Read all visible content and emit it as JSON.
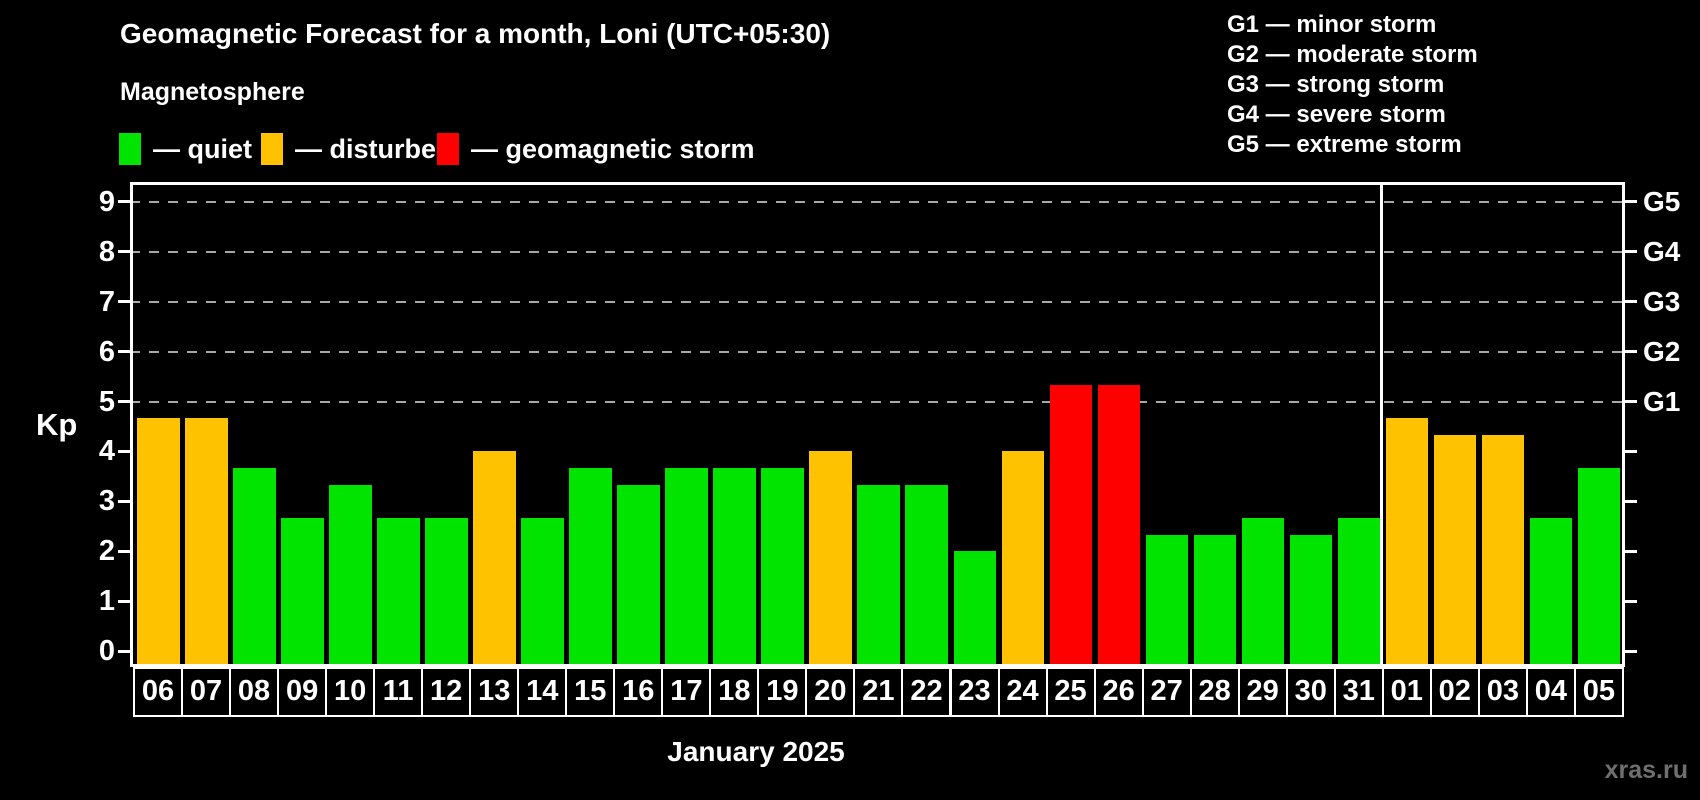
{
  "header": {
    "title": "Geomagnetic Forecast for a month, Loni (UTC+05:30)",
    "subtitle": "Magnetosphere"
  },
  "legend": {
    "items": [
      {
        "key": "quiet",
        "label": "— quiet",
        "color": "#00e400"
      },
      {
        "key": "disturbed",
        "label": "— disturbed",
        "color": "#ffc200"
      },
      {
        "key": "storm",
        "label": "— geomagnetic storm",
        "color": "#ff0000"
      }
    ]
  },
  "storm_scale_legend": {
    "lines": [
      "G1 — minor storm",
      "G2 — moderate storm",
      "G3 — strong storm",
      "G4 — severe storm",
      "G5 — extreme storm"
    ]
  },
  "y_axis": {
    "label": "Kp",
    "ticks": [
      0,
      1,
      2,
      3,
      4,
      5,
      6,
      7,
      8,
      9
    ],
    "gridlines": [
      5,
      6,
      7,
      8,
      9
    ]
  },
  "right_axis": {
    "labels": [
      {
        "kp": 5,
        "text": "G1"
      },
      {
        "kp": 6,
        "text": "G2"
      },
      {
        "kp": 7,
        "text": "G3"
      },
      {
        "kp": 8,
        "text": "G4"
      },
      {
        "kp": 9,
        "text": "G5"
      }
    ]
  },
  "x_axis": {
    "month_label": "January 2025",
    "month_boundary_after_index": 25
  },
  "watermark": "xras.ru",
  "colors": {
    "background": "#000000",
    "axis": "#ffffff",
    "gridline": "#a8a8a8",
    "quiet": "#00e400",
    "disturbed": "#ffc200",
    "storm": "#ff0000",
    "watermark": "#6f6f6f"
  },
  "chart_data": {
    "type": "bar",
    "title": "Geomagnetic Forecast for a month, Loni (UTC+05:30)",
    "xlabel": "January 2025",
    "ylabel": "Kp",
    "ylim": [
      0,
      9.4
    ],
    "grid": "dashed horizontal at Kp 5-9",
    "legend_position": "top-left",
    "categories": [
      "06",
      "07",
      "08",
      "09",
      "10",
      "11",
      "12",
      "13",
      "14",
      "15",
      "16",
      "17",
      "18",
      "19",
      "20",
      "21",
      "22",
      "23",
      "24",
      "25",
      "26",
      "27",
      "28",
      "29",
      "30",
      "31",
      "01",
      "02",
      "03",
      "04",
      "05"
    ],
    "values": [
      4.67,
      4.67,
      3.67,
      2.67,
      3.33,
      2.67,
      2.67,
      4.0,
      2.67,
      3.67,
      3.33,
      3.67,
      3.67,
      3.67,
      4.0,
      3.33,
      3.33,
      2.0,
      4.0,
      5.33,
      5.33,
      2.33,
      2.33,
      2.67,
      2.33,
      2.67,
      4.67,
      4.33,
      4.33,
      2.67,
      3.67
    ],
    "status": [
      "disturbed",
      "disturbed",
      "quiet",
      "quiet",
      "quiet",
      "quiet",
      "quiet",
      "disturbed",
      "quiet",
      "quiet",
      "quiet",
      "quiet",
      "quiet",
      "quiet",
      "disturbed",
      "quiet",
      "quiet",
      "quiet",
      "disturbed",
      "storm",
      "storm",
      "quiet",
      "quiet",
      "quiet",
      "quiet",
      "quiet",
      "disturbed",
      "disturbed",
      "disturbed",
      "quiet",
      "quiet"
    ]
  }
}
